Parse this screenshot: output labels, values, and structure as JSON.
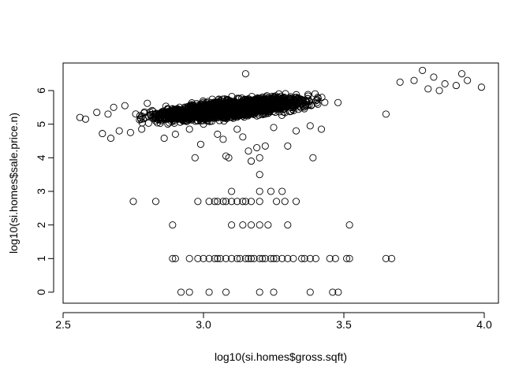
{
  "chart_data": {
    "type": "scatter",
    "title": "",
    "xlabel": "log10(si.homes$gross.sqft)",
    "ylabel": "log10(si.homes$sale.price.n)",
    "xlim": [
      2.55,
      4.0
    ],
    "ylim": [
      0,
      6.6
    ],
    "xticks": [
      2.5,
      3.0,
      3.5,
      4.0
    ],
    "xtick_labels": [
      "2.5",
      "3.0",
      "3.5",
      "4.0"
    ],
    "yticks": [
      0,
      1,
      2,
      3,
      4,
      5,
      6
    ],
    "ytick_labels": [
      "0",
      "1",
      "2",
      "3",
      "4",
      "5",
      "6"
    ],
    "grid": false,
    "legend": "none",
    "marker": "open-circle",
    "point_color": "#000000",
    "cluster": {
      "x_min": 2.56,
      "x_max": 3.95,
      "slope": 0.9,
      "x_center": 3.2,
      "y_center": 5.55,
      "density_peak_x": 3.1,
      "approx_points": 2600
    },
    "points": [
      [
        2.56,
        5.2
      ],
      [
        2.58,
        5.15
      ],
      [
        2.62,
        5.35
      ],
      [
        2.64,
        4.72
      ],
      [
        2.66,
        5.3
      ],
      [
        2.67,
        4.58
      ],
      [
        2.68,
        5.5
      ],
      [
        2.7,
        4.8
      ],
      [
        2.72,
        5.55
      ],
      [
        2.74,
        4.75
      ],
      [
        2.78,
        4.85
      ],
      [
        2.8,
        5.62
      ],
      [
        2.86,
        4.58
      ],
      [
        2.9,
        4.7
      ],
      [
        2.95,
        4.85
      ],
      [
        2.99,
        4.4
      ],
      [
        3.0,
        5.0
      ],
      [
        3.05,
        4.7
      ],
      [
        3.07,
        4.55
      ],
      [
        3.09,
        4.0
      ],
      [
        3.12,
        4.85
      ],
      [
        3.14,
        4.62
      ],
      [
        3.16,
        4.2
      ],
      [
        3.17,
        3.9
      ],
      [
        3.19,
        4.3
      ],
      [
        3.2,
        4.0
      ],
      [
        3.22,
        4.35
      ],
      [
        3.25,
        4.9
      ],
      [
        3.3,
        4.35
      ],
      [
        3.33,
        4.8
      ],
      [
        3.38,
        4.95
      ],
      [
        3.39,
        4.0
      ],
      [
        3.42,
        4.85
      ],
      [
        3.15,
        6.5
      ],
      [
        3.65,
        5.3
      ],
      [
        3.7,
        6.25
      ],
      [
        3.75,
        6.3
      ],
      [
        3.78,
        6.6
      ],
      [
        3.8,
        6.05
      ],
      [
        3.82,
        6.4
      ],
      [
        3.84,
        6.0
      ],
      [
        3.86,
        6.2
      ],
      [
        3.9,
        6.15
      ],
      [
        3.92,
        6.5
      ],
      [
        3.94,
        6.3
      ],
      [
        3.99,
        6.1
      ],
      [
        2.97,
        4.0
      ],
      [
        3.08,
        4.05
      ],
      [
        3.1,
        5.2
      ],
      [
        3.2,
        3.5
      ],
      [
        3.1,
        3.0
      ],
      [
        3.2,
        3.0
      ],
      [
        3.28,
        3.0
      ],
      [
        3.24,
        3.0
      ],
      [
        2.75,
        2.7
      ],
      [
        2.83,
        2.7
      ],
      [
        2.98,
        2.7
      ],
      [
        3.02,
        2.7
      ],
      [
        3.04,
        2.7
      ],
      [
        3.05,
        2.7
      ],
      [
        3.07,
        2.7
      ],
      [
        3.08,
        2.7
      ],
      [
        3.1,
        2.7
      ],
      [
        3.12,
        2.7
      ],
      [
        3.14,
        2.7
      ],
      [
        3.15,
        2.7
      ],
      [
        3.17,
        2.7
      ],
      [
        3.2,
        2.7
      ],
      [
        3.26,
        2.7
      ],
      [
        3.29,
        2.7
      ],
      [
        3.33,
        2.7
      ],
      [
        2.89,
        2.0
      ],
      [
        3.1,
        2.0
      ],
      [
        3.14,
        2.0
      ],
      [
        3.17,
        2.0
      ],
      [
        3.2,
        2.0
      ],
      [
        3.23,
        2.0
      ],
      [
        3.3,
        2.0
      ],
      [
        3.52,
        2.0
      ],
      [
        2.89,
        1.0
      ],
      [
        2.9,
        1.0
      ],
      [
        2.95,
        1.0
      ],
      [
        2.98,
        1.0
      ],
      [
        3.0,
        1.0
      ],
      [
        3.02,
        1.0
      ],
      [
        3.04,
        1.0
      ],
      [
        3.05,
        1.0
      ],
      [
        3.06,
        1.0
      ],
      [
        3.08,
        1.0
      ],
      [
        3.1,
        1.0
      ],
      [
        3.12,
        1.0
      ],
      [
        3.13,
        1.0
      ],
      [
        3.15,
        1.0
      ],
      [
        3.16,
        1.0
      ],
      [
        3.17,
        1.0
      ],
      [
        3.18,
        1.0
      ],
      [
        3.2,
        1.0
      ],
      [
        3.21,
        1.0
      ],
      [
        3.22,
        1.0
      ],
      [
        3.24,
        1.0
      ],
      [
        3.25,
        1.0
      ],
      [
        3.26,
        1.0
      ],
      [
        3.28,
        1.0
      ],
      [
        3.3,
        1.0
      ],
      [
        3.32,
        1.0
      ],
      [
        3.35,
        1.0
      ],
      [
        3.36,
        1.0
      ],
      [
        3.38,
        1.0
      ],
      [
        3.4,
        1.0
      ],
      [
        3.45,
        1.0
      ],
      [
        3.47,
        1.0
      ],
      [
        3.51,
        1.0
      ],
      [
        3.52,
        1.0
      ],
      [
        3.65,
        1.0
      ],
      [
        3.67,
        1.0
      ],
      [
        2.92,
        0.0
      ],
      [
        2.95,
        0.0
      ],
      [
        3.02,
        0.0
      ],
      [
        3.08,
        0.0
      ],
      [
        3.2,
        0.0
      ],
      [
        3.25,
        0.0
      ],
      [
        3.38,
        0.0
      ],
      [
        3.46,
        0.0
      ],
      [
        3.48,
        0.0
      ]
    ]
  }
}
